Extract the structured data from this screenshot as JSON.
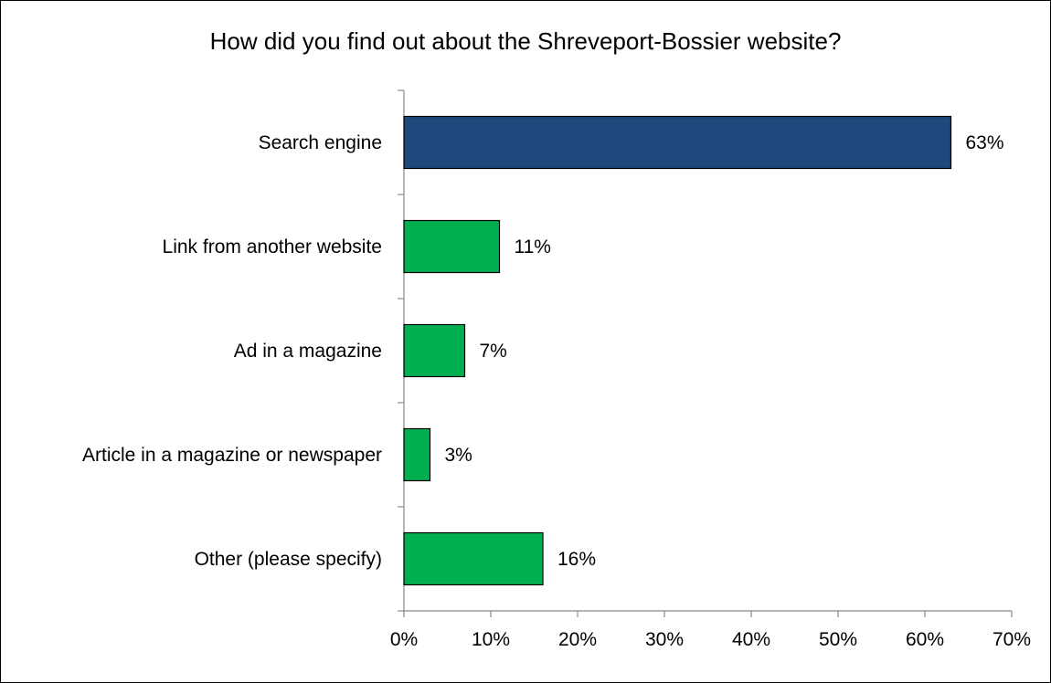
{
  "chart_data": {
    "type": "bar",
    "orientation": "horizontal",
    "title": "How did you find out about the Shreveport-Bossier website?",
    "categories": [
      "Search engine",
      "Link from another website",
      "Ad in a magazine",
      "Article in a magazine or newspaper",
      "Other (please specify)"
    ],
    "values": [
      63,
      11,
      7,
      3,
      16
    ],
    "value_labels": [
      "63%",
      "11%",
      "7%",
      "3%",
      "16%"
    ],
    "bar_colors": [
      "#1f497d",
      "#00b050",
      "#00b050",
      "#00b050",
      "#00b050"
    ],
    "xlim": [
      0,
      70
    ],
    "xticks": [
      0,
      10,
      20,
      30,
      40,
      50,
      60,
      70
    ],
    "xtick_labels": [
      "0%",
      "10%",
      "20%",
      "30%",
      "40%",
      "50%",
      "60%",
      "70%"
    ],
    "xlabel": "",
    "ylabel": "",
    "grid": false,
    "legend": "none"
  }
}
